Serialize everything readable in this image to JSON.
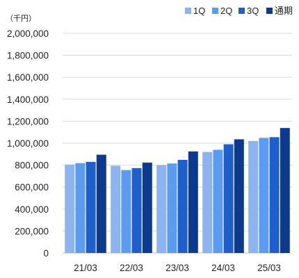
{
  "chart_data": {
    "type": "bar",
    "unit_label": "（千円）",
    "categories": [
      "21/03",
      "22/03",
      "23/03",
      "24/03",
      "25/03"
    ],
    "series": [
      {
        "name": "1Q",
        "color": "#8db4ef",
        "values": [
          805000,
          795000,
          800000,
          920000,
          1020000
        ]
      },
      {
        "name": "2Q",
        "color": "#5b9bf0",
        "values": [
          818000,
          755000,
          815000,
          940000,
          1048000
        ]
      },
      {
        "name": "3Q",
        "color": "#1f5fcc",
        "values": [
          830000,
          773000,
          848000,
          990000,
          1055000
        ]
      },
      {
        "name": "通期",
        "color": "#0d3a8f",
        "values": [
          895000,
          823000,
          925000,
          1035000,
          1138000
        ]
      }
    ],
    "ylim": [
      0,
      2000000
    ],
    "yticks": [
      0,
      200000,
      400000,
      600000,
      800000,
      1000000,
      1200000,
      1400000,
      1600000,
      1800000,
      2000000
    ],
    "ytick_labels": [
      "0",
      "200,000",
      "400,000",
      "600,000",
      "800,000",
      "1,000,000",
      "1,200,000",
      "1,400,000",
      "1,600,000",
      "1,800,000",
      "2,000,000"
    ],
    "grid": true,
    "legend_position": "top-right"
  }
}
